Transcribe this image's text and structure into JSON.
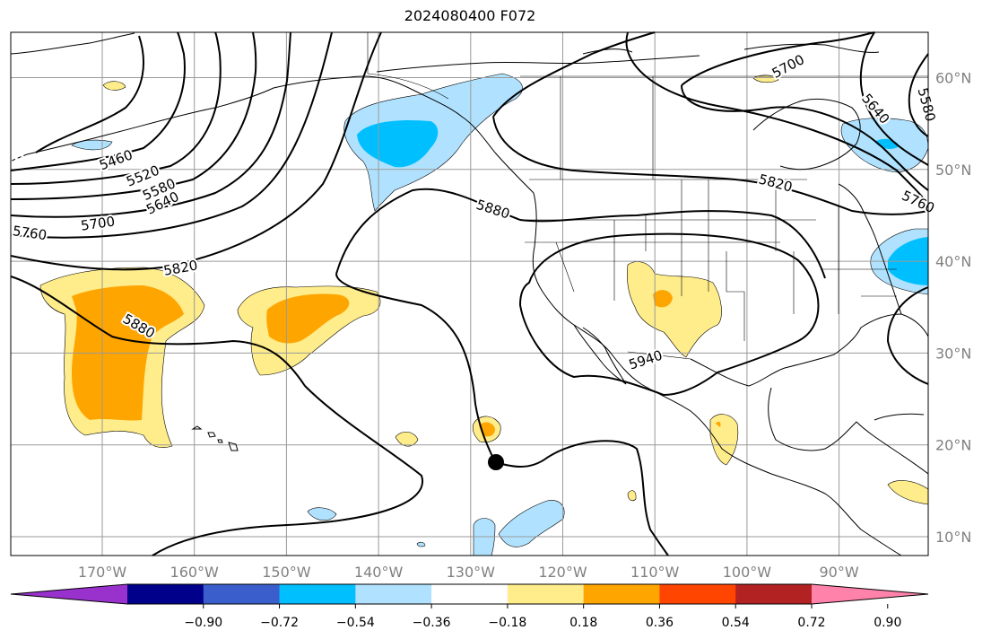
{
  "title": "2024080400 F072",
  "colors": {
    "coast": "#000000",
    "grid": "#9a9a9a",
    "contour": "#000000",
    "marker": "#000000"
  },
  "latitudes": [
    {
      "label": "60°N",
      "lat": 60
    },
    {
      "label": "50°N",
      "lat": 50
    },
    {
      "label": "40°N",
      "lat": 40
    },
    {
      "label": "30°N",
      "lat": 30
    },
    {
      "label": "20°N",
      "lat": 20
    },
    {
      "label": "10°N",
      "lat": 10
    }
  ],
  "longitudes": [
    {
      "label": "170°W",
      "lon": -170
    },
    {
      "label": "160°W",
      "lon": -160
    },
    {
      "label": "150°W",
      "lon": -150
    },
    {
      "label": "140°W",
      "lon": -140
    },
    {
      "label": "130°W",
      "lon": -130
    },
    {
      "label": "120°W",
      "lon": -120
    },
    {
      "label": "110°W",
      "lon": -110
    },
    {
      "label": "100°W",
      "lon": -100
    },
    {
      "label": "90°W",
      "lon": -90
    }
  ],
  "contour_labels": [
    "5460",
    "5520",
    "5580",
    "5640",
    "5700",
    "5760",
    "5820",
    "5880",
    "5940"
  ],
  "colorbar": {
    "colors": [
      "#9932cc",
      "#00008b",
      "#3a5fcd",
      "#00bfff",
      "#b0e2ff",
      "#ffffff",
      "#ffec8b",
      "#ffa500",
      "#ff4500",
      "#b22222",
      "#ff82ab"
    ],
    "ticks": [
      "−0.90",
      "−0.72",
      "−0.54",
      "−0.36",
      "−0.18",
      "0.18",
      "0.36",
      "0.54",
      "0.72",
      "0.90"
    ]
  }
}
